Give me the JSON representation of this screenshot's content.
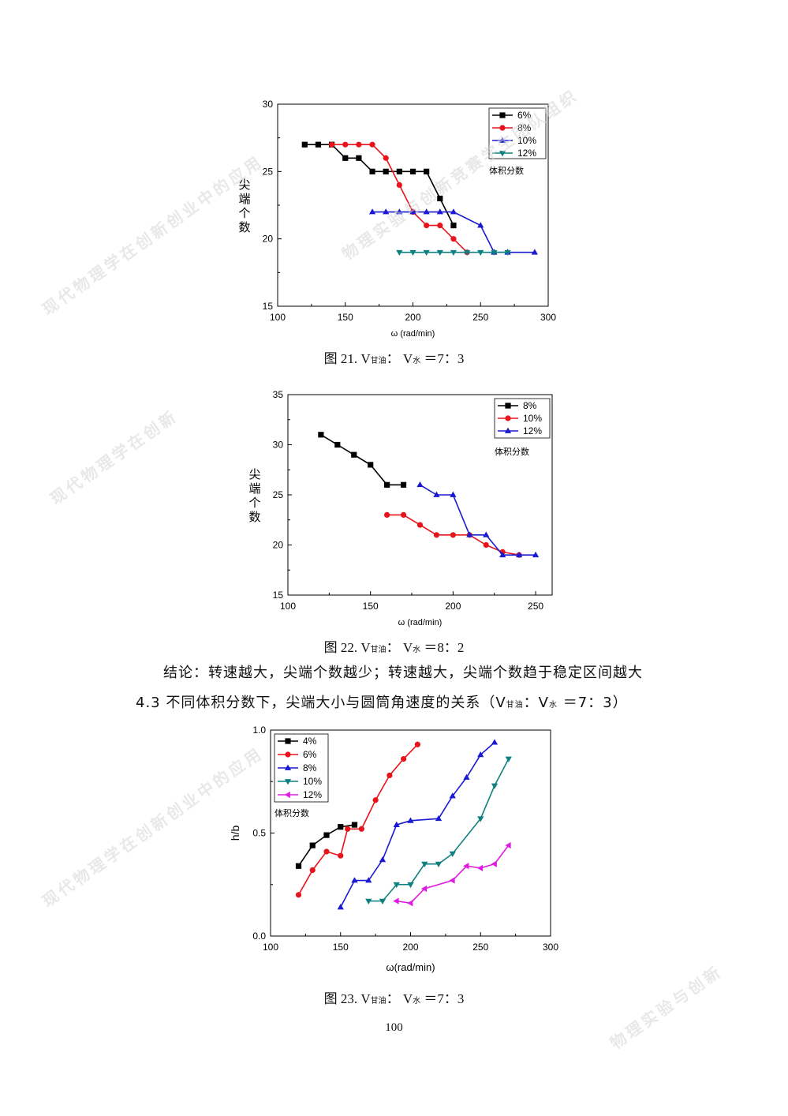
{
  "watermark_texts": [
    "现代物理学在创新创业中的应用",
    "物理实验与创新竞赛学生团队组织",
    "现代物理学在创新",
    "现代物理学在创新创业中的应用",
    "物理实验与创新"
  ],
  "chart_data": [
    {
      "type": "line",
      "ylabel": "尖端个数",
      "xlabel": "ω (rad/min)",
      "xlim": [
        100,
        300
      ],
      "ylim": [
        15,
        30
      ],
      "xticks": [
        "100",
        "150",
        "200",
        "250",
        "300"
      ],
      "yticks": [
        "15",
        "20",
        "25",
        "30"
      ],
      "legend_title": "体积分数",
      "legend_position": "top-right",
      "series": [
        {
          "name": "6%",
          "marker": "square",
          "color": "#000000",
          "x": [
            120,
            130,
            140,
            150,
            160,
            170,
            180,
            190,
            200,
            210,
            220,
            230
          ],
          "y": [
            27,
            27,
            27,
            26,
            26,
            25,
            25,
            25,
            25,
            25,
            23,
            21
          ]
        },
        {
          "name": "8%",
          "marker": "circle",
          "color": "#e8141c",
          "x": [
            140,
            150,
            160,
            170,
            180,
            190,
            200,
            210,
            220,
            230,
            240
          ],
          "y": [
            27,
            27,
            27,
            27,
            26,
            24,
            22,
            21,
            21,
            20,
            19
          ]
        },
        {
          "name": "10%",
          "marker": "triangle-up",
          "color": "#1a1ad0",
          "x": [
            170,
            180,
            190,
            200,
            210,
            220,
            230,
            250,
            260,
            270,
            290
          ],
          "y": [
            22,
            22,
            22,
            22,
            22,
            22,
            22,
            21,
            19,
            19,
            19
          ]
        },
        {
          "name": "12%",
          "marker": "triangle-down",
          "color": "#0e8080",
          "x": [
            190,
            200,
            210,
            220,
            230,
            240,
            250,
            260,
            270
          ],
          "y": [
            19,
            19,
            19,
            19,
            19,
            19,
            19,
            19,
            19
          ]
        }
      ]
    },
    {
      "type": "line",
      "ylabel": "尖端个数",
      "xlabel": "ω (rad/min)",
      "xlim": [
        100,
        260
      ],
      "ylim": [
        15,
        35
      ],
      "xticks": [
        "100",
        "150",
        "200",
        "250"
      ],
      "yticks": [
        "15",
        "20",
        "25",
        "30",
        "35"
      ],
      "legend_title": "体积分数",
      "legend_position": "top-right",
      "series": [
        {
          "name": "8%",
          "marker": "square",
          "color": "#000000",
          "x": [
            120,
            130,
            140,
            150,
            160,
            170
          ],
          "y": [
            31,
            30,
            29,
            28,
            26,
            26
          ]
        },
        {
          "name": "10%",
          "marker": "circle",
          "color": "#e8141c",
          "x": [
            160,
            170,
            180,
            190,
            200,
            210,
            220,
            230,
            240
          ],
          "y": [
            23,
            23,
            22,
            21,
            21,
            21,
            20,
            19.3,
            19
          ]
        },
        {
          "name": "12%",
          "marker": "triangle-up",
          "color": "#1a1ad0",
          "x": [
            180,
            190,
            200,
            210,
            220,
            230,
            240,
            250
          ],
          "y": [
            26,
            25,
            25,
            21,
            21,
            19,
            19,
            19
          ]
        }
      ]
    },
    {
      "type": "line",
      "ylabel": "h/b",
      "xlabel": "ω(rad/min)",
      "xlim": [
        100,
        300
      ],
      "ylim": [
        0.0,
        1.0
      ],
      "xticks": [
        "100",
        "150",
        "200",
        "250",
        "300"
      ],
      "yticks": [
        "0.0",
        "0.5",
        "1.0"
      ],
      "legend_title": "体积分数",
      "legend_position": "top-left",
      "series": [
        {
          "name": "4%",
          "marker": "square",
          "color": "#000000",
          "x": [
            120,
            130,
            140,
            150,
            160
          ],
          "y": [
            0.34,
            0.44,
            0.49,
            0.53,
            0.54
          ]
        },
        {
          "name": "6%",
          "marker": "circle",
          "color": "#e8141c",
          "x": [
            120,
            130,
            140,
            150,
            155,
            165,
            175,
            185,
            195,
            205
          ],
          "y": [
            0.2,
            0.32,
            0.41,
            0.39,
            0.52,
            0.52,
            0.66,
            0.78,
            0.86,
            0.93
          ]
        },
        {
          "name": "8%",
          "marker": "triangle-up",
          "color": "#1a1ad0",
          "x": [
            150,
            160,
            170,
            180,
            190,
            200,
            220,
            230,
            240,
            250,
            260
          ],
          "y": [
            0.14,
            0.27,
            0.27,
            0.37,
            0.54,
            0.56,
            0.57,
            0.68,
            0.77,
            0.88,
            0.94
          ]
        },
        {
          "name": "10%",
          "marker": "triangle-down",
          "color": "#0e8080",
          "x": [
            170,
            180,
            190,
            200,
            210,
            220,
            230,
            250,
            260,
            270
          ],
          "y": [
            0.17,
            0.17,
            0.25,
            0.25,
            0.35,
            0.35,
            0.4,
            0.57,
            0.73,
            0.86
          ]
        },
        {
          "name": "12%",
          "marker": "triangle-left",
          "color": "#e01ce0",
          "x": [
            190,
            200,
            210,
            230,
            240,
            250,
            260,
            270
          ],
          "y": [
            0.17,
            0.16,
            0.23,
            0.27,
            0.34,
            0.33,
            0.35,
            0.44
          ]
        }
      ]
    }
  ],
  "captions": [
    {
      "prefix": "图 21. V",
      "sub1": "甘油",
      "mid": "： V",
      "sub2": "水",
      "suffix": " ＝7：3"
    },
    {
      "prefix": "图 22. V",
      "sub1": "甘油",
      "mid": "： V",
      "sub2": "水",
      "suffix": " ＝8：2"
    },
    {
      "prefix": "图 23. V",
      "sub1": "甘油",
      "mid": "： V",
      "sub2": "水",
      "suffix": " ＝7：3"
    }
  ],
  "conclusion": "结论：转速越大，尖端个数越少；转速越大，尖端个数趋于稳定区间越大",
  "section": {
    "prefix": "4.3 不同体积分数下，尖端大小与圆筒角速度的关系（V",
    "sub1": "甘油",
    "mid": "：V",
    "sub2": "水",
    "suffix": " ＝7：3）"
  },
  "page_number": "100"
}
